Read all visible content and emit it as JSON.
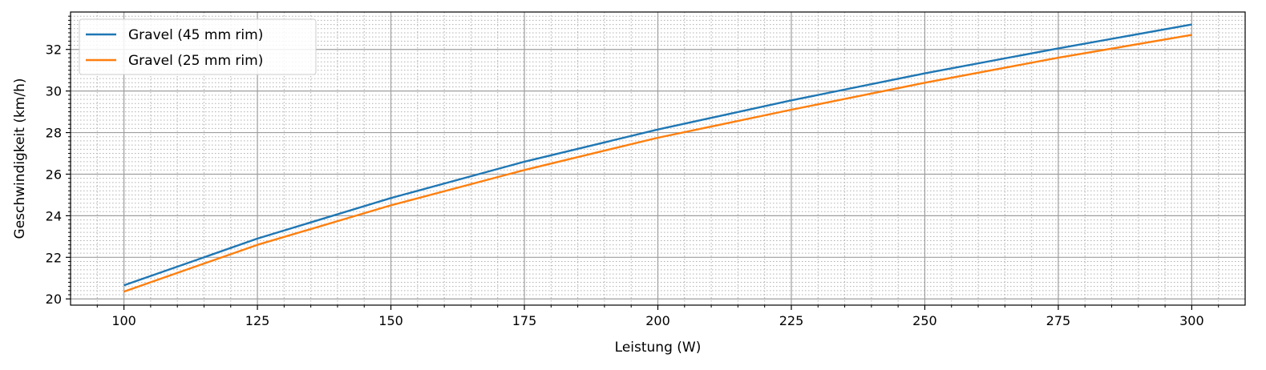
{
  "chart_data": {
    "type": "line",
    "title": "",
    "xlabel": "Leistung (W)",
    "ylabel": "Geschwindigkeit (km/h)",
    "xlim": [
      90,
      310
    ],
    "ylim": [
      19.7,
      33.8
    ],
    "x_ticks": [
      "100",
      "125",
      "150",
      "175",
      "200",
      "225",
      "250",
      "275",
      "300"
    ],
    "y_ticks": [
      "20",
      "22",
      "24",
      "26",
      "28",
      "30",
      "32"
    ],
    "grid": "major solid, minor dotted",
    "legend_position": "upper-left",
    "x": [
      100,
      125,
      150,
      175,
      200,
      225,
      250,
      275,
      300
    ],
    "series": [
      {
        "name": "Gravel (45 mm rim)",
        "color": "#1f77b4",
        "values": [
          20.65,
          22.9,
          24.85,
          26.6,
          28.15,
          29.55,
          30.85,
          32.05,
          33.2
        ]
      },
      {
        "name": "Gravel (25 mm rim)",
        "color": "#ff7f0e",
        "values": [
          20.35,
          22.6,
          24.5,
          26.2,
          27.75,
          29.1,
          30.4,
          31.6,
          32.7
        ]
      }
    ]
  }
}
